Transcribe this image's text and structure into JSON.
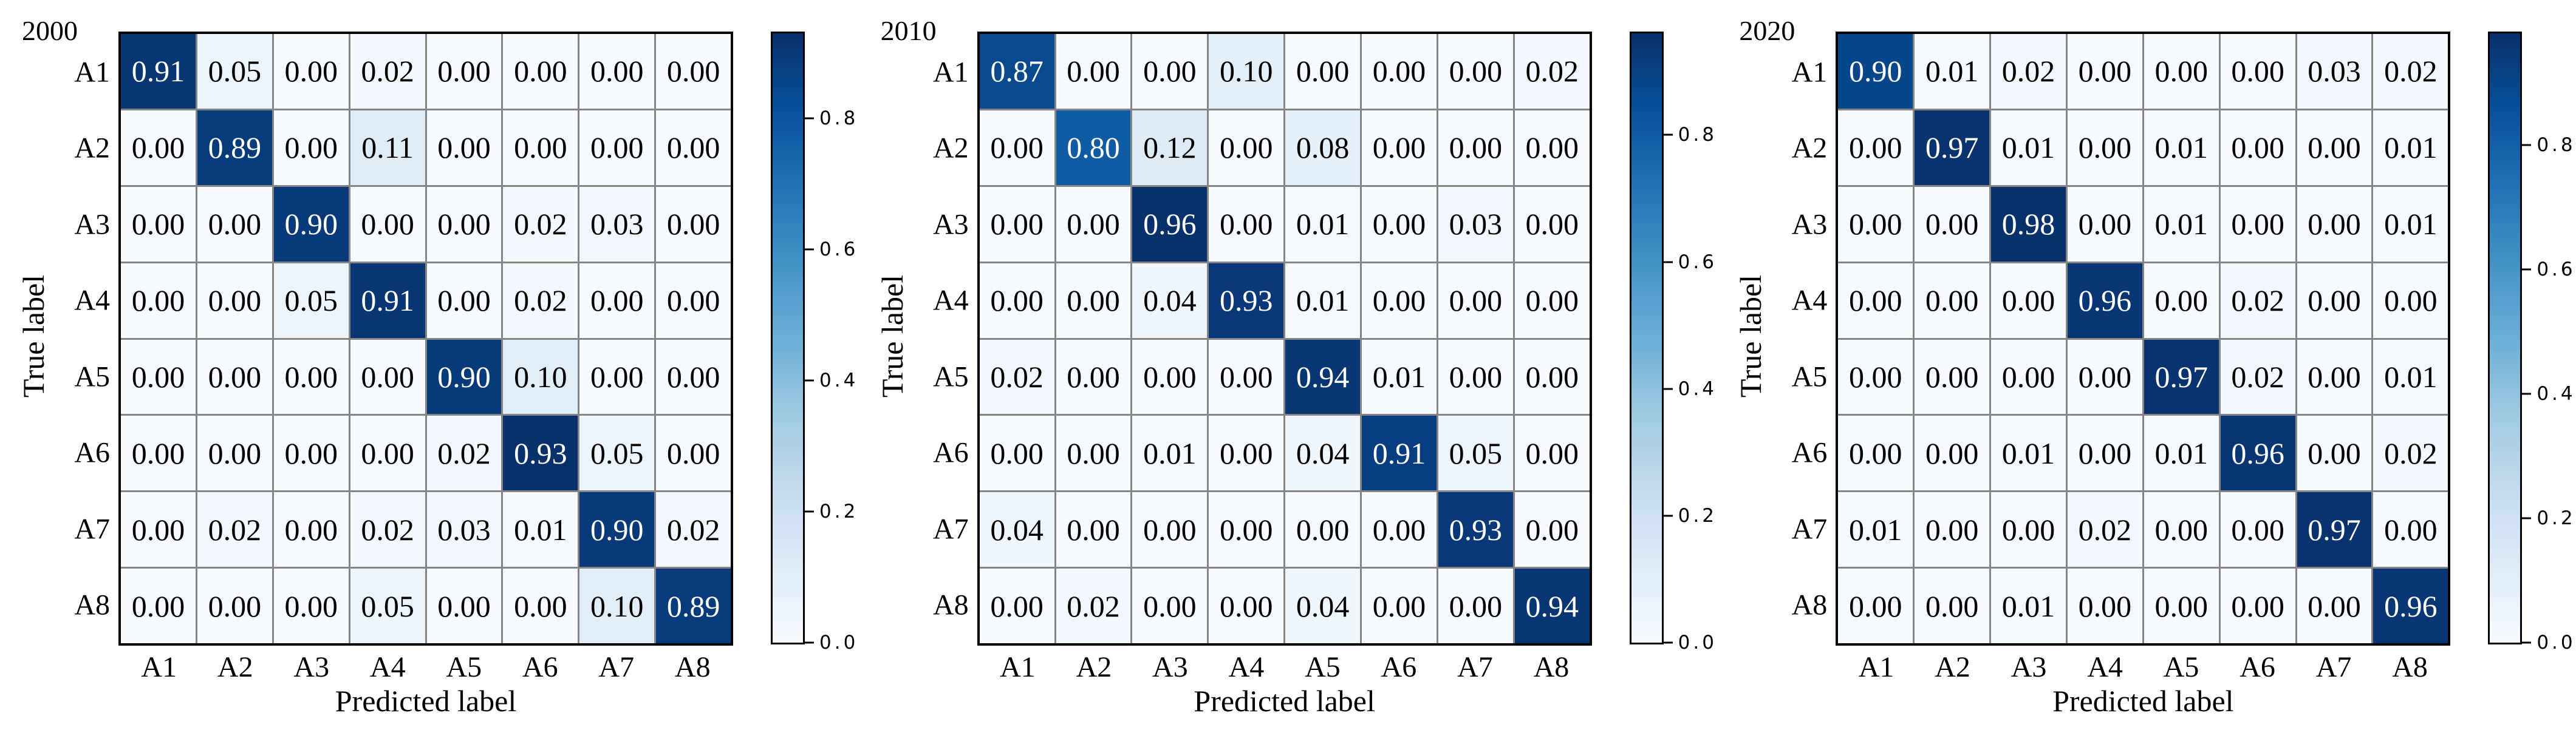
{
  "style": {
    "colormap": "Blues",
    "colormap_anchors": [
      {
        "t": 0.0,
        "color": "#f7fbff"
      },
      {
        "t": 0.125,
        "color": "#deebf7"
      },
      {
        "t": 0.25,
        "color": "#c6dbef"
      },
      {
        "t": 0.375,
        "color": "#9ecae1"
      },
      {
        "t": 0.5,
        "color": "#6baed6"
      },
      {
        "t": 0.625,
        "color": "#4292c6"
      },
      {
        "t": 0.75,
        "color": "#2171b5"
      },
      {
        "t": 0.875,
        "color": "#08519c"
      },
      {
        "t": 1.0,
        "color": "#08306b"
      }
    ],
    "grid_line_color": "#858585",
    "border_color": "#000000",
    "cell_text_dark": "#000000",
    "cell_text_light": "#ffffff"
  },
  "chart_data": [
    {
      "type": "heatmap",
      "title": "2000",
      "xlabel": "Predicted label",
      "ylabel": "True label",
      "x_tick_labels": [
        "A1",
        "A2",
        "A3",
        "A4",
        "A5",
        "A6",
        "A7",
        "A8"
      ],
      "y_tick_labels": [
        "A1",
        "A2",
        "A3",
        "A4",
        "A5",
        "A6",
        "A7",
        "A8"
      ],
      "vmin": 0.0,
      "vmax": 0.93,
      "colorbar_ticks": [
        0.0,
        0.2,
        0.4,
        0.6,
        0.8
      ],
      "values": [
        [
          0.91,
          0.05,
          0.0,
          0.02,
          0.0,
          0.0,
          0.0,
          0.0
        ],
        [
          0.0,
          0.89,
          0.0,
          0.11,
          0.0,
          0.0,
          0.0,
          0.0
        ],
        [
          0.0,
          0.0,
          0.9,
          0.0,
          0.0,
          0.02,
          0.03,
          0.0
        ],
        [
          0.0,
          0.0,
          0.05,
          0.91,
          0.0,
          0.02,
          0.0,
          0.0
        ],
        [
          0.0,
          0.0,
          0.0,
          0.0,
          0.9,
          0.1,
          0.0,
          0.0
        ],
        [
          0.0,
          0.0,
          0.0,
          0.0,
          0.02,
          0.93,
          0.05,
          0.0
        ],
        [
          0.0,
          0.02,
          0.0,
          0.02,
          0.03,
          0.01,
          0.9,
          0.02
        ],
        [
          0.0,
          0.0,
          0.0,
          0.05,
          0.0,
          0.0,
          0.1,
          0.89
        ]
      ]
    },
    {
      "type": "heatmap",
      "title": "2010",
      "xlabel": "Predicted label",
      "ylabel": "True label",
      "x_tick_labels": [
        "A1",
        "A2",
        "A3",
        "A4",
        "A5",
        "A6",
        "A7",
        "A8"
      ],
      "y_tick_labels": [
        "A1",
        "A2",
        "A3",
        "A4",
        "A5",
        "A6",
        "A7",
        "A8"
      ],
      "vmin": 0.0,
      "vmax": 0.96,
      "colorbar_ticks": [
        0.0,
        0.2,
        0.4,
        0.6,
        0.8
      ],
      "values": [
        [
          0.87,
          0.0,
          0.0,
          0.1,
          0.0,
          0.0,
          0.0,
          0.02
        ],
        [
          0.0,
          0.8,
          0.12,
          0.0,
          0.08,
          0.0,
          0.0,
          0.0
        ],
        [
          0.0,
          0.0,
          0.96,
          0.0,
          0.01,
          0.0,
          0.03,
          0.0
        ],
        [
          0.0,
          0.0,
          0.04,
          0.93,
          0.01,
          0.0,
          0.0,
          0.0
        ],
        [
          0.02,
          0.0,
          0.0,
          0.0,
          0.94,
          0.01,
          0.0,
          0.0
        ],
        [
          0.0,
          0.0,
          0.01,
          0.0,
          0.04,
          0.91,
          0.05,
          0.0
        ],
        [
          0.04,
          0.0,
          0.0,
          0.0,
          0.0,
          0.0,
          0.93,
          0.0
        ],
        [
          0.0,
          0.02,
          0.0,
          0.0,
          0.04,
          0.0,
          0.0,
          0.94
        ]
      ]
    },
    {
      "type": "heatmap",
      "title": "2020",
      "xlabel": "Predicted label",
      "ylabel": "True label",
      "x_tick_labels": [
        "A1",
        "A2",
        "A3",
        "A4",
        "A5",
        "A6",
        "A7",
        "A8"
      ],
      "y_tick_labels": [
        "A1",
        "A2",
        "A3",
        "A4",
        "A5",
        "A6",
        "A7",
        "A8"
      ],
      "vmin": 0.0,
      "vmax": 0.98,
      "colorbar_ticks": [
        0.0,
        0.2,
        0.4,
        0.6,
        0.8
      ],
      "values": [
        [
          0.9,
          0.01,
          0.02,
          0.0,
          0.0,
          0.0,
          0.03,
          0.02
        ],
        [
          0.0,
          0.97,
          0.01,
          0.0,
          0.01,
          0.0,
          0.0,
          0.01
        ],
        [
          0.0,
          0.0,
          0.98,
          0.0,
          0.01,
          0.0,
          0.0,
          0.01
        ],
        [
          0.0,
          0.0,
          0.0,
          0.96,
          0.0,
          0.02,
          0.0,
          0.0
        ],
        [
          0.0,
          0.0,
          0.0,
          0.0,
          0.97,
          0.02,
          0.0,
          0.01
        ],
        [
          0.0,
          0.0,
          0.01,
          0.0,
          0.01,
          0.96,
          0.0,
          0.02
        ],
        [
          0.01,
          0.0,
          0.0,
          0.02,
          0.0,
          0.0,
          0.97,
          0.0
        ],
        [
          0.0,
          0.0,
          0.01,
          0.0,
          0.0,
          0.0,
          0.0,
          0.96
        ]
      ]
    }
  ]
}
